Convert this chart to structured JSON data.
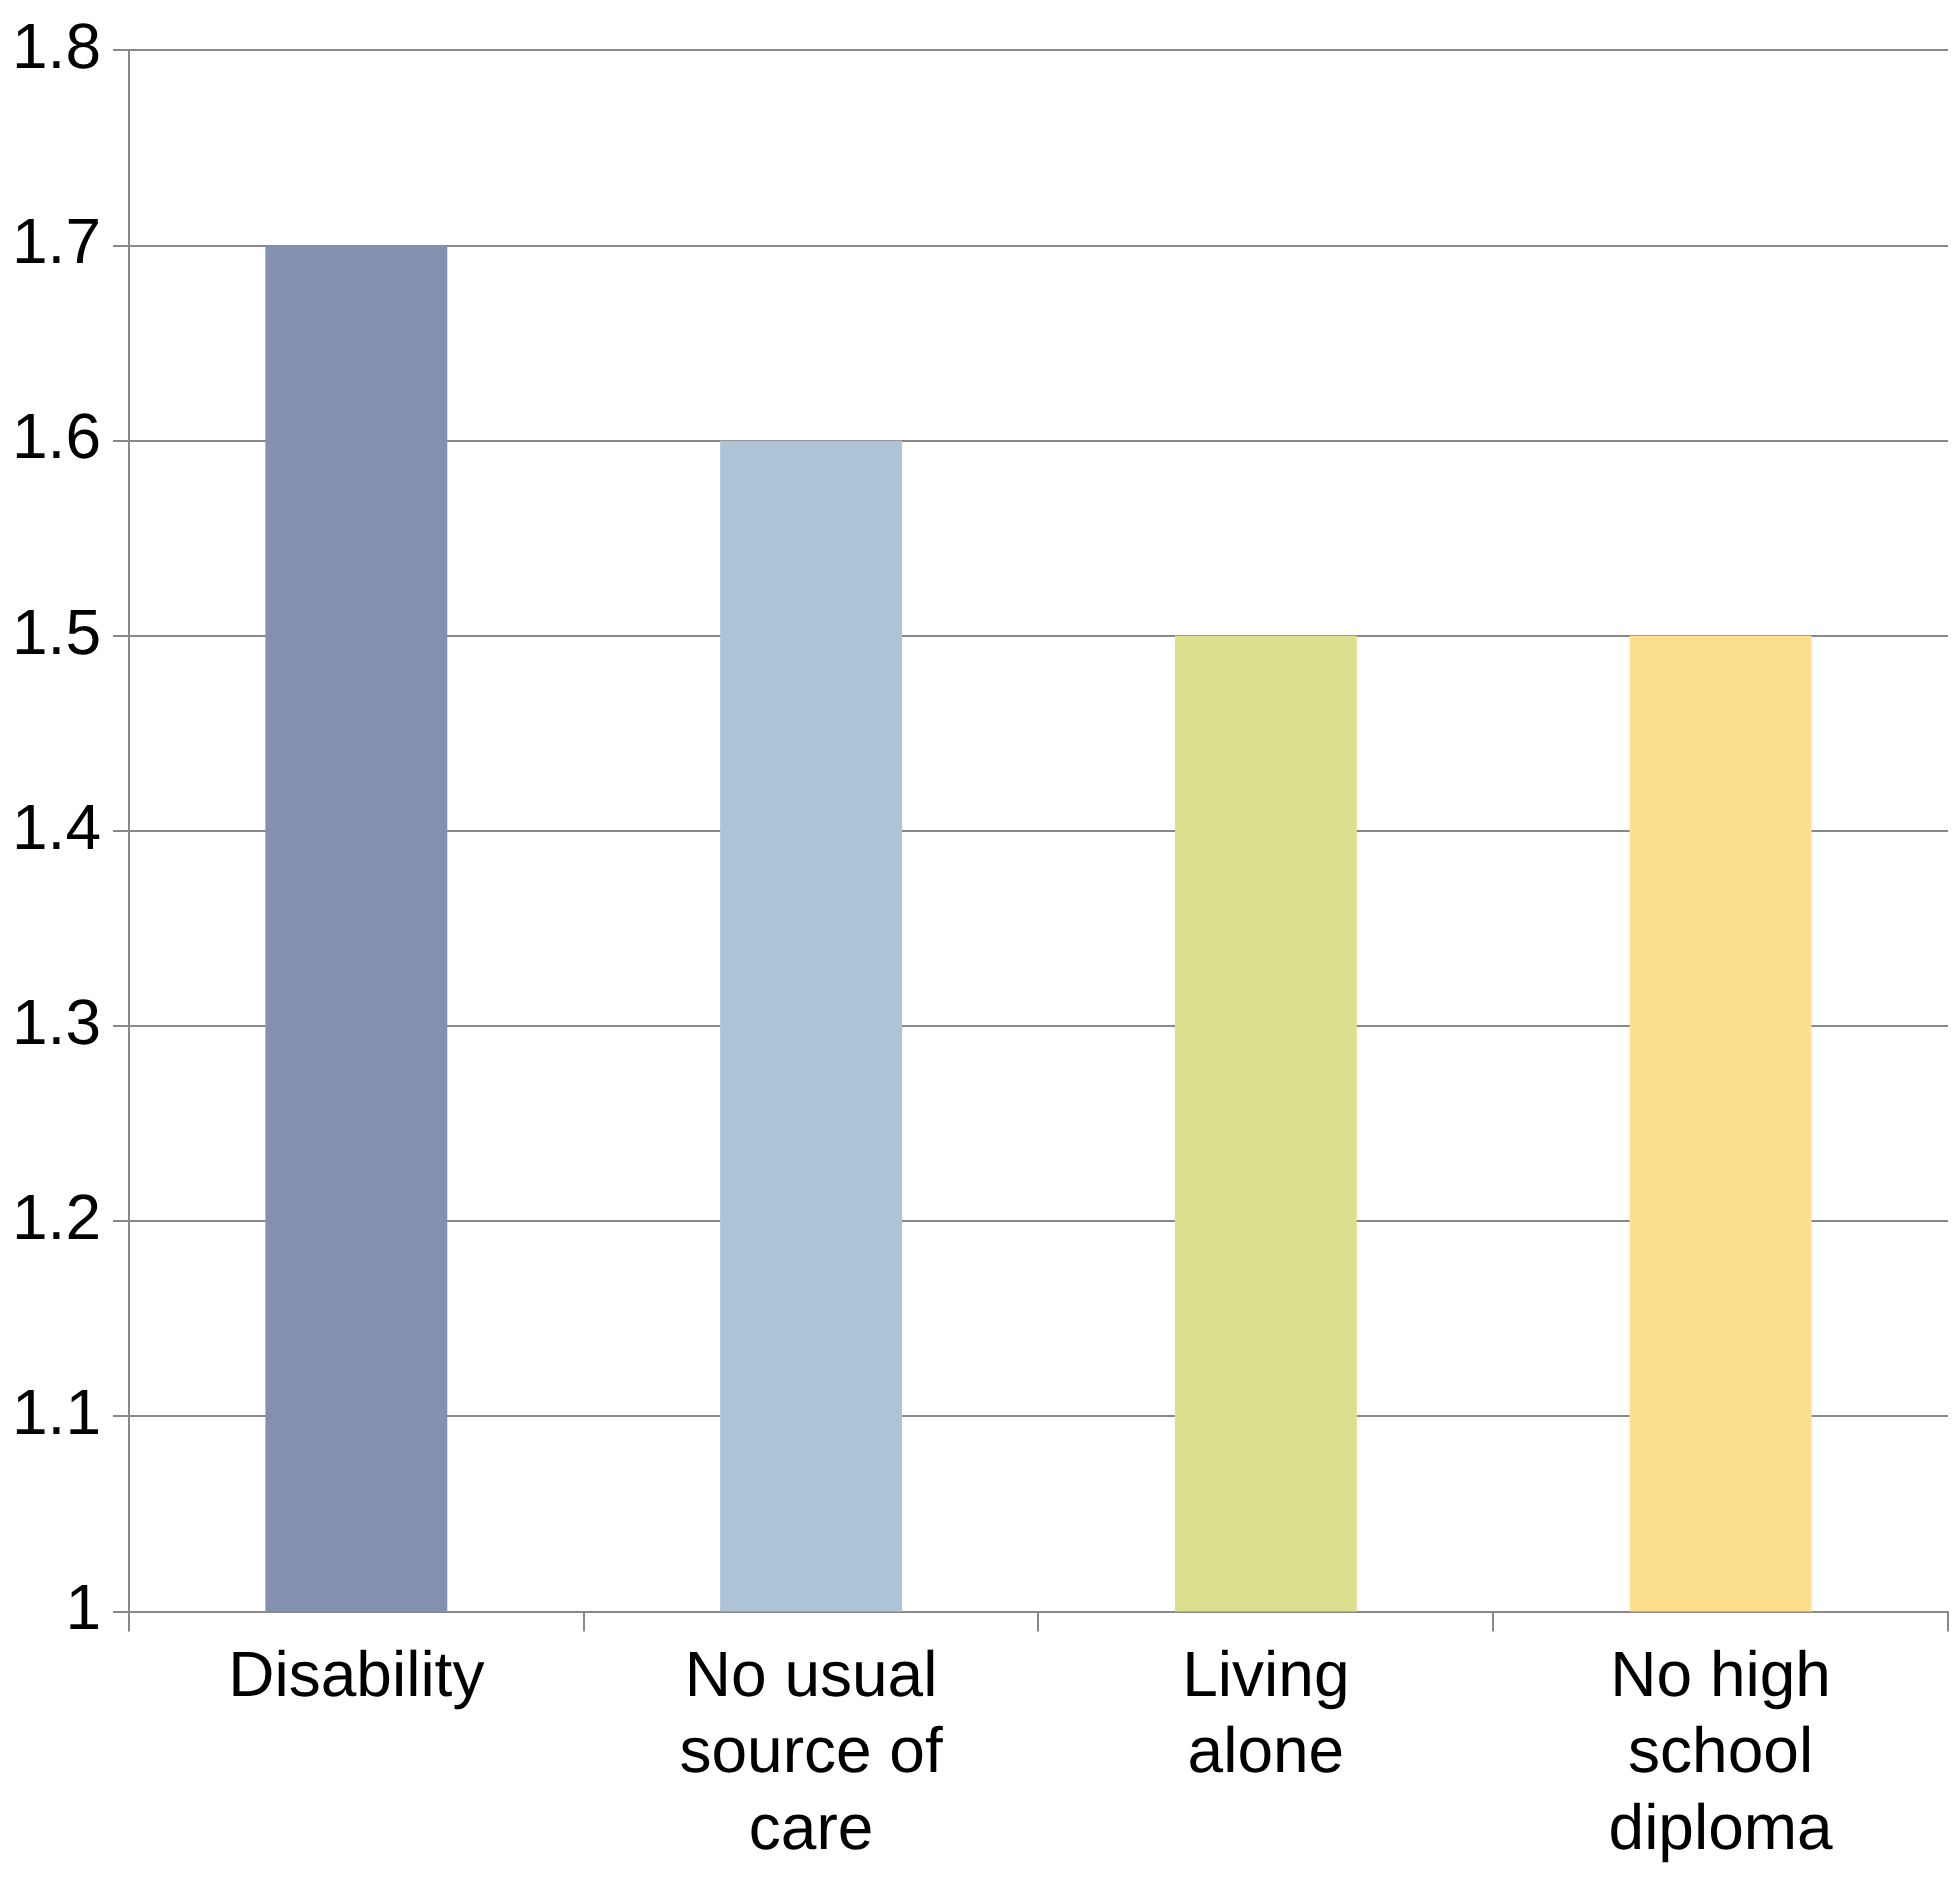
{
  "chart_data": {
    "type": "bar",
    "categories": [
      "Disability",
      "No usual source of care",
      "Living alone",
      "No high school diploma"
    ],
    "values": [
      1.7,
      1.6,
      1.5,
      1.5
    ],
    "colors": [
      "#8390b0",
      "#adc4d7",
      "#dbdf8e",
      "#fbdf8c"
    ],
    "ylim": [
      1,
      1.8
    ],
    "yticks": [
      1,
      1.1,
      1.2,
      1.3,
      1.4,
      1.5,
      1.6,
      1.7,
      1.8
    ],
    "grid": "y",
    "legend": false
  }
}
